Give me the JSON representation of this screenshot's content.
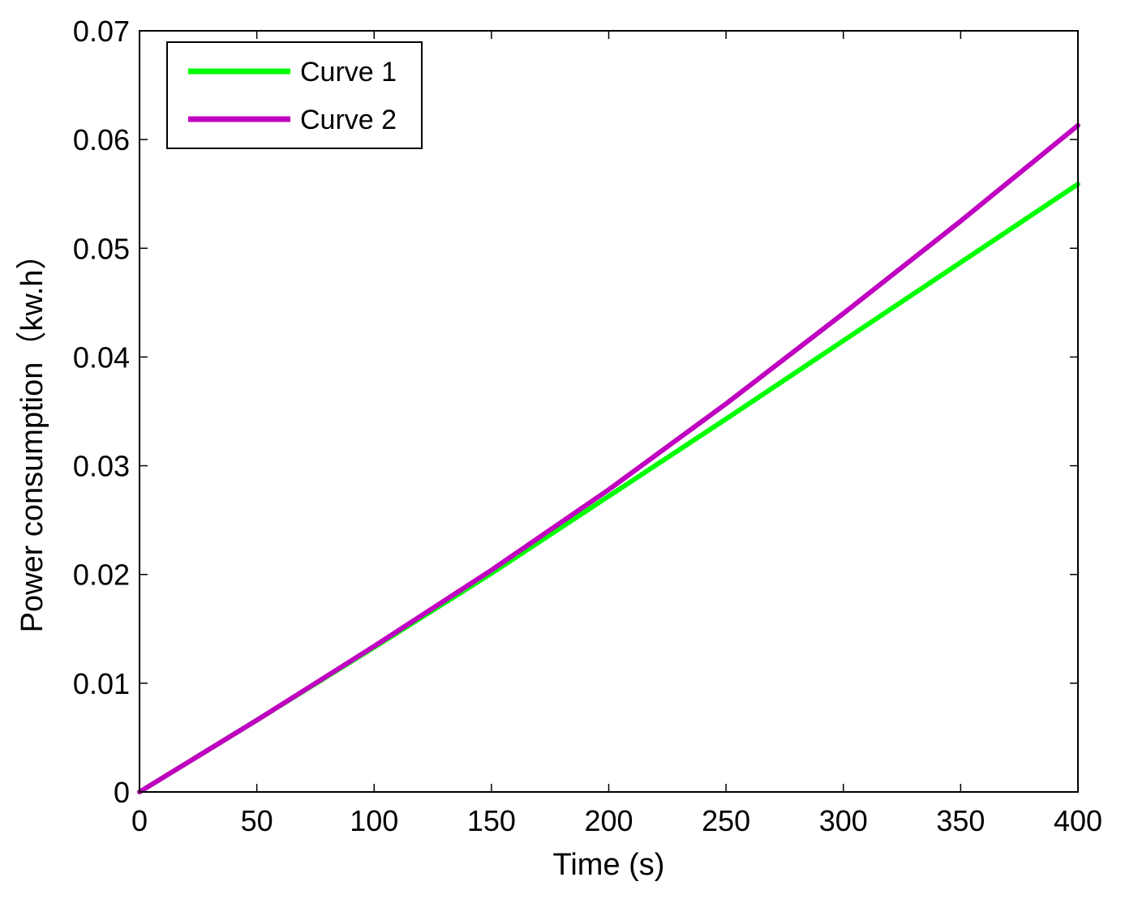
{
  "chart_data": {
    "type": "line",
    "xlabel": "Time (s)",
    "ylabel": "Power consumption（kw.h）",
    "xlim": [
      0,
      400
    ],
    "ylim": [
      0,
      0.07
    ],
    "xticks": [
      "0",
      "50",
      "100",
      "150",
      "200",
      "250",
      "300",
      "350",
      "400"
    ],
    "yticks": [
      "0",
      "0.01",
      "0.02",
      "0.03",
      "0.04",
      "0.05",
      "0.06",
      "0.07"
    ],
    "grid": false,
    "legend_position": "top-left",
    "x": [
      0,
      50,
      100,
      150,
      200,
      250,
      300,
      350,
      400
    ],
    "series": [
      {
        "name": "Curve 1",
        "color": "#00ff00",
        "values": [
          0,
          0.0066,
          0.0133,
          0.0201,
          0.0272,
          0.0343,
          0.0415,
          0.0487,
          0.0559
        ]
      },
      {
        "name": "Curve 2",
        "color": "#c000c0",
        "values": [
          0,
          0.0066,
          0.0134,
          0.0204,
          0.0278,
          0.0357,
          0.044,
          0.0525,
          0.0613
        ]
      }
    ]
  }
}
